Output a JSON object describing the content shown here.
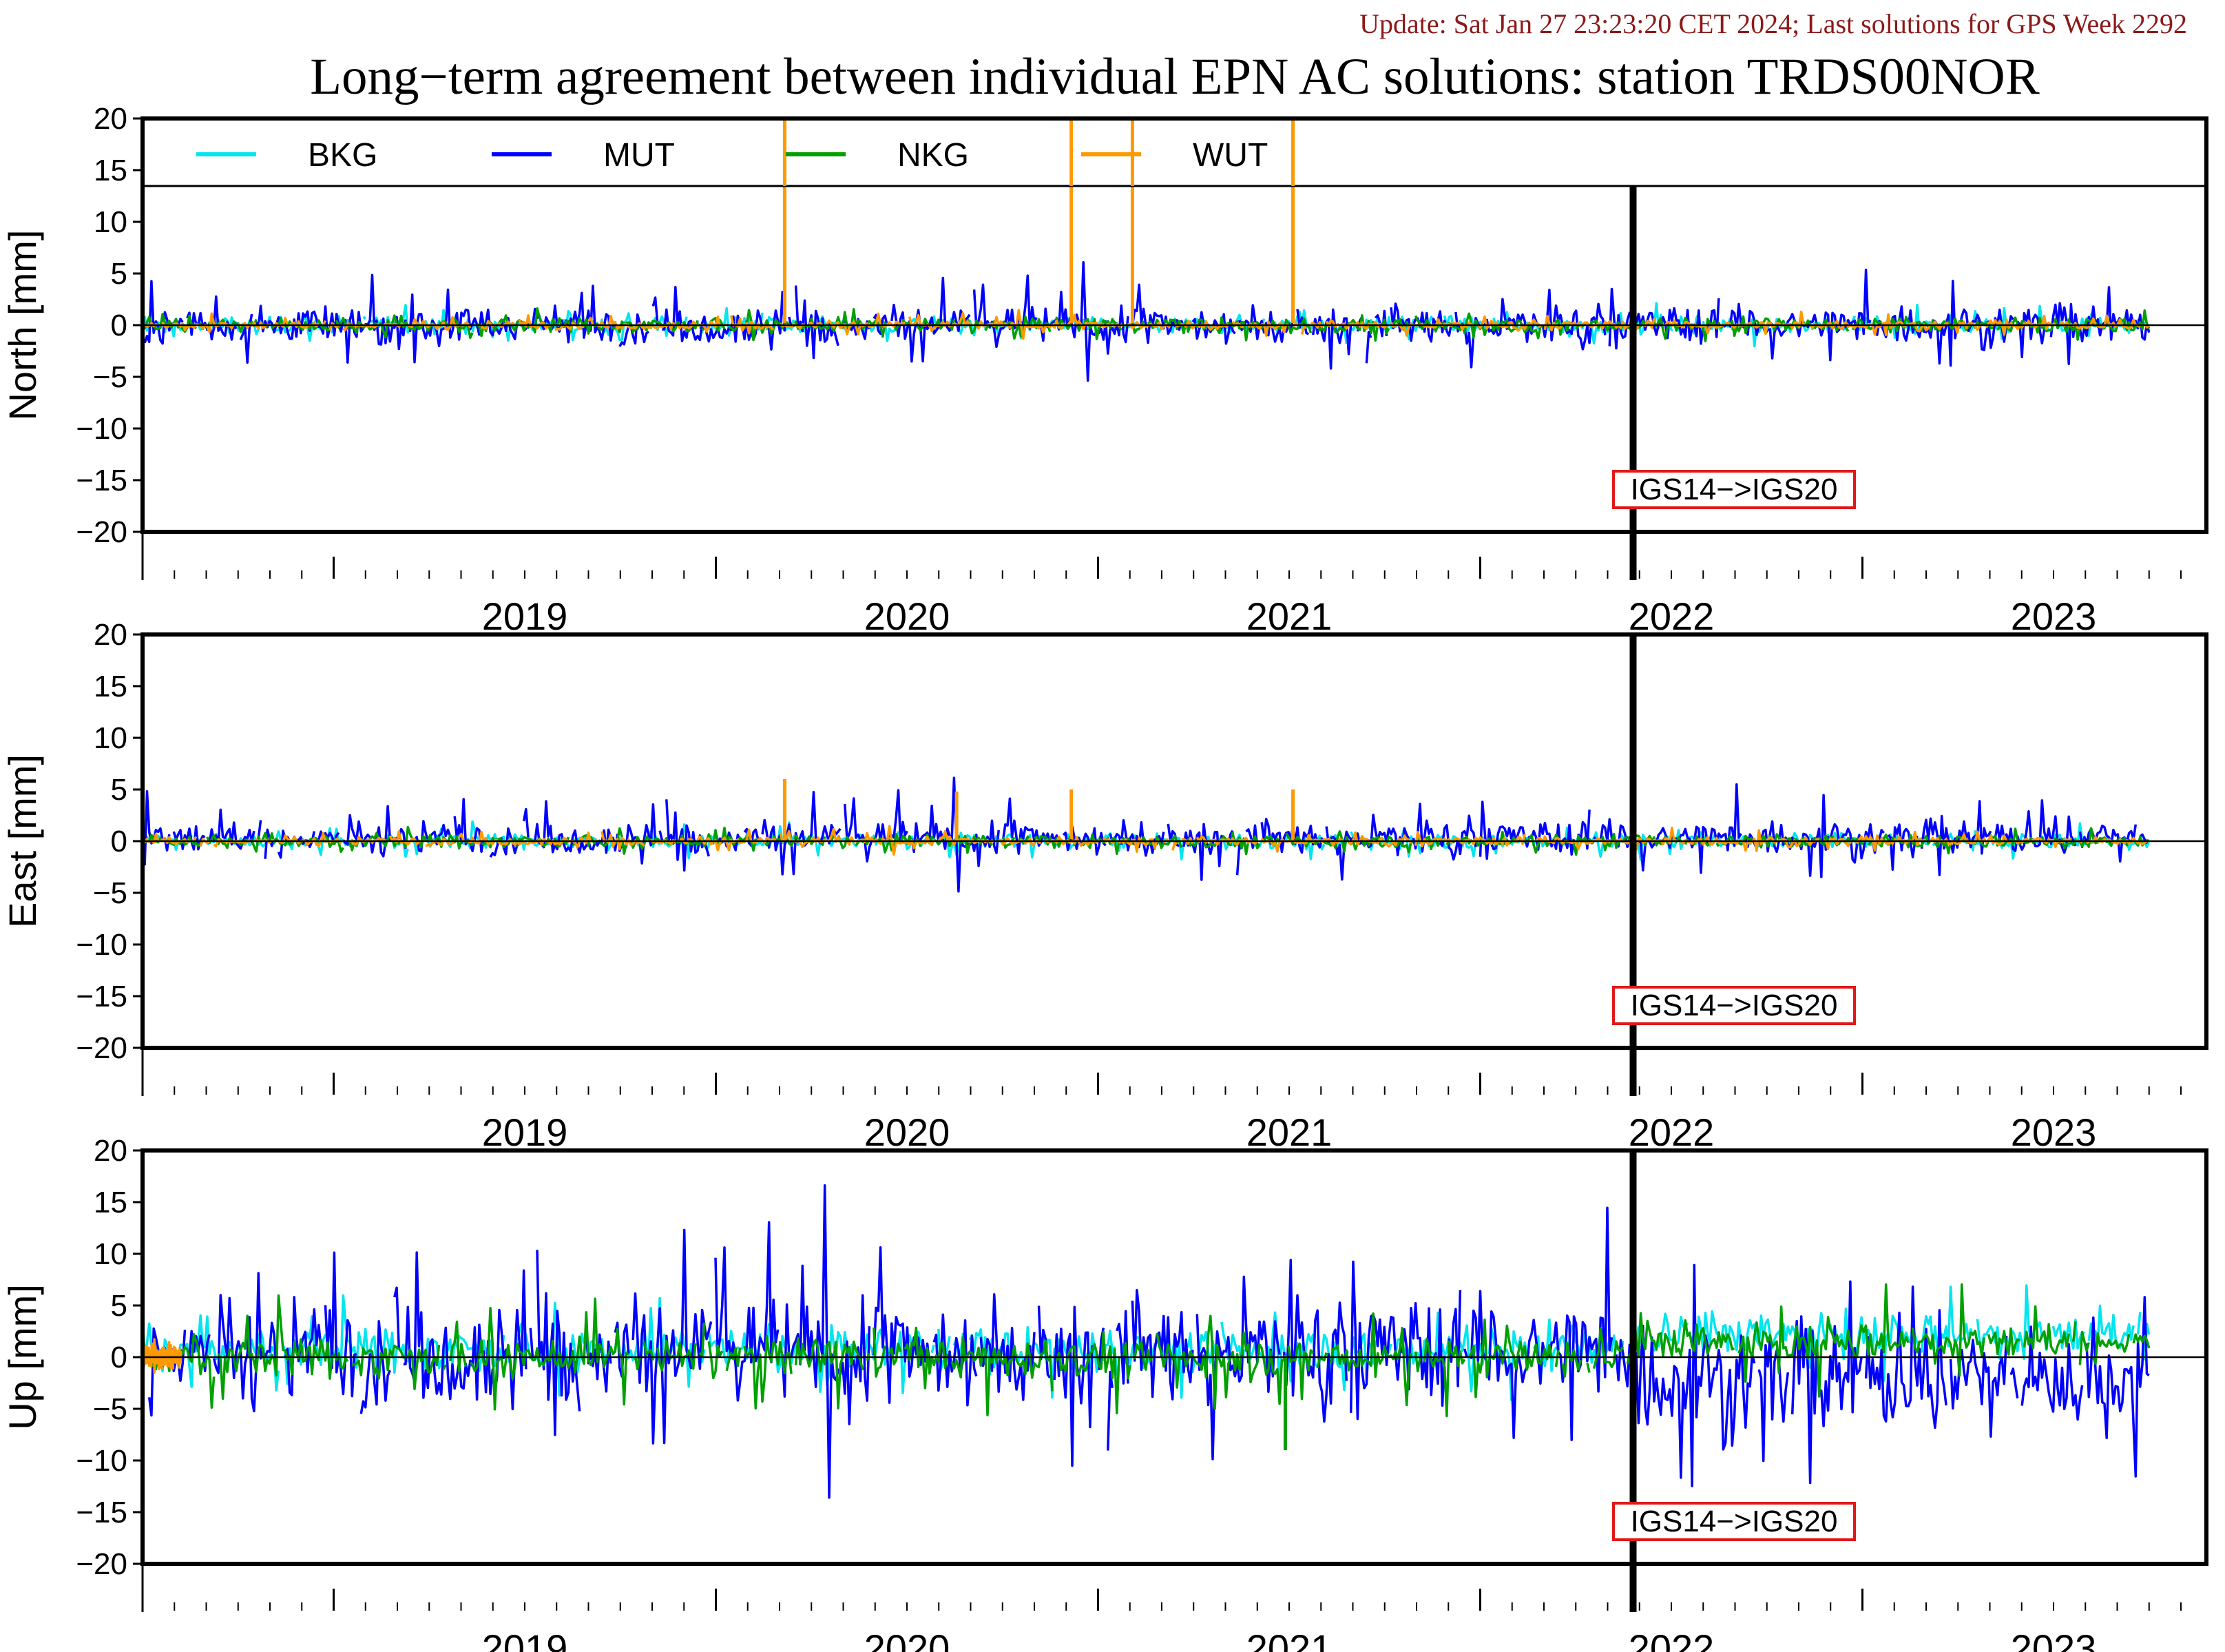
{
  "header": {
    "update_text": "Update: Sat Jan 27 23:23:20 CET 2024; Last solutions for GPS Week 2292",
    "title": "Long−term agreement between individual EPN AC solutions: station TRDS00NOR"
  },
  "colors": {
    "update_text": "#8b1a1a",
    "axis": "#000000",
    "event_box": "#e01818",
    "BKG": "#00e5ee",
    "MUT": "#0000ff",
    "NKG": "#00a000",
    "WUT": "#ff9900"
  },
  "chart_data": [
    {
      "type": "line",
      "name": "north",
      "ylabel": "North [mm]",
      "ylim": [
        -20,
        20
      ],
      "yticks": [
        20,
        15,
        10,
        5,
        0,
        -5,
        -10,
        -15,
        -20
      ],
      "xlim": [
        2018.5,
        2023.9
      ],
      "xtick_labels": [
        "2019",
        "2020",
        "2021",
        "2022",
        "2023"
      ],
      "grid": false,
      "zero_line": true,
      "legend_position": "top-inside",
      "legend": [
        "BKG",
        "MUT",
        "NKG",
        "WUT"
      ],
      "event": {
        "x": 2022.4,
        "label": "IGS14−>IGS20"
      },
      "series": [
        {
          "name": "BKG",
          "scatter_mm": 0.4,
          "bias_mm": 0,
          "spike_mm": 1.5,
          "x": [
            2018.5,
            2023.75
          ]
        },
        {
          "name": "MUT",
          "scatter_mm": 0.9,
          "bias_mm": 0,
          "spike_mm": 4,
          "x": [
            2018.5,
            2023.75
          ]
        },
        {
          "name": "NKG",
          "scatter_mm": 0.35,
          "bias_mm": 0,
          "spike_mm": 1.2,
          "x": [
            2018.5,
            2023.75
          ]
        },
        {
          "name": "WUT",
          "scatter_mm": 0.2,
          "bias_mm": 0,
          "spike_mm": 1,
          "x": [
            2018.5,
            2023.75
          ],
          "outliers": [
            [
              2020.18,
              20
            ],
            [
              2020.93,
              20
            ],
            [
              2021.09,
              20
            ],
            [
              2021.51,
              20
            ]
          ]
        }
      ]
    },
    {
      "type": "line",
      "name": "east",
      "ylabel": "East [mm]",
      "ylim": [
        -20,
        20
      ],
      "yticks": [
        20,
        15,
        10,
        5,
        0,
        -5,
        -10,
        -15,
        -20
      ],
      "xlim": [
        2018.5,
        2023.9
      ],
      "xtick_labels": [
        "2019",
        "2020",
        "2021",
        "2022",
        "2023"
      ],
      "grid": false,
      "zero_line": true,
      "event": {
        "x": 2022.4,
        "label": "IGS14−>IGS20"
      },
      "series": [
        {
          "name": "BKG",
          "scatter_mm": 0.35,
          "bias_mm": 0,
          "spike_mm": 1.5,
          "x": [
            2018.5,
            2023.75
          ]
        },
        {
          "name": "MUT",
          "scatter_mm": 0.8,
          "bias_mm": 0.3,
          "spike_mm": 4,
          "x": [
            2018.5,
            2023.75
          ]
        },
        {
          "name": "NKG",
          "scatter_mm": 0.3,
          "bias_mm": 0,
          "spike_mm": 1,
          "x": [
            2018.5,
            2023.75
          ]
        },
        {
          "name": "WUT",
          "scatter_mm": 0.2,
          "bias_mm": 0,
          "spike_mm": 1,
          "x": [
            2018.5,
            2023.75
          ],
          "outliers": [
            [
              2020.18,
              6
            ],
            [
              2020.63,
              4.8
            ],
            [
              2020.93,
              5
            ],
            [
              2021.51,
              5
            ]
          ]
        }
      ]
    },
    {
      "type": "line",
      "name": "up",
      "ylabel": "Up [mm]",
      "ylim": [
        -20,
        20
      ],
      "yticks": [
        20,
        15,
        10,
        5,
        0,
        -5,
        -10,
        -15,
        -20
      ],
      "xlim": [
        2018.5,
        2023.9
      ],
      "xtick_labels": [
        "2019",
        "2020",
        "2021",
        "2022",
        "2023"
      ],
      "grid": false,
      "zero_line": true,
      "event": {
        "x": 2022.4,
        "label": "IGS14−>IGS20"
      },
      "series": [
        {
          "name": "BKG",
          "scatter_mm": 1.0,
          "bias_mm": 0.8,
          "bias_after_event_mm": 2.2,
          "spike_mm": 4,
          "x": [
            2018.5,
            2023.75
          ]
        },
        {
          "name": "MUT",
          "scatter_mm": 2.6,
          "bias_mm": 0.5,
          "bias_after_event_mm": -2.2,
          "spike_mm": 10,
          "x": [
            2018.5,
            2023.75
          ]
        },
        {
          "name": "NKG",
          "scatter_mm": 0.9,
          "bias_mm": 0,
          "bias_after_event_mm": 1.5,
          "spike_mm": 5,
          "x": [
            2018.5,
            2023.75
          ],
          "outliers": [
            [
              2021.49,
              -9
            ]
          ]
        },
        {
          "name": "WUT",
          "scatter_mm": 0.3,
          "bias_mm": 0,
          "spike_mm": 1,
          "x": [
            2018.5,
            2018.6
          ]
        }
      ]
    }
  ]
}
